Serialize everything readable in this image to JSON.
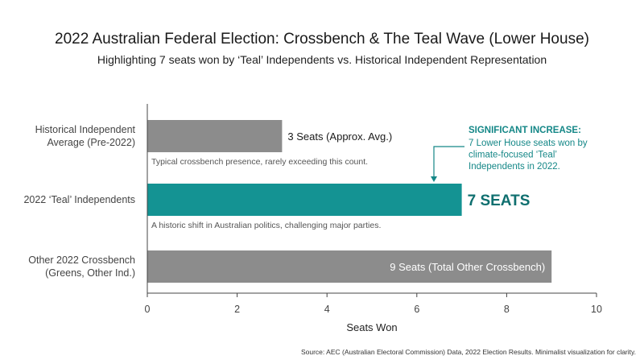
{
  "chart_data": {
    "type": "bar",
    "orientation": "horizontal",
    "title": "2022 Australian Federal Election: Crossbench & The Teal Wave (Lower House)",
    "subtitle": "Highlighting 7 seats won by ‘Teal’ Independents vs. Historical Independent Representation",
    "xlabel": "Seats Won",
    "xlim": [
      0,
      10
    ],
    "xticks": [
      0,
      2,
      4,
      6,
      8,
      10
    ],
    "grid": false,
    "categories": [
      {
        "lines": [
          "Historical Independent",
          "Average (Pre-2022)"
        ]
      },
      {
        "lines": [
          "2022 ‘Teal’ Independents"
        ]
      },
      {
        "lines": [
          "Other 2022 Crossbench",
          "(Greens, Other Ind.)"
        ]
      }
    ],
    "values": [
      3,
      7,
      9
    ],
    "bar_labels": [
      "3 Seats (Approx. Avg.)",
      "7 SEATS",
      "9 Seats (Total Other Crossbench)"
    ],
    "bar_notes": [
      "Typical crossbench presence, rarely exceeding this count.",
      "A historic shift in Australian politics, challenging major parties.",
      ""
    ],
    "colors": [
      "#8c8c8c",
      "#149393",
      "#8c8c8c"
    ],
    "annotation": {
      "heading": "SIGNIFICANT INCREASE:",
      "lines": [
        "7 Lower House seats won by",
        "climate-focused ‘Teal’",
        "Independents in 2022."
      ],
      "color": "#148787"
    },
    "source": "Source: AEC (Australian Electoral Commission) Data, 2022 Election Results. Minimalist visualization for clarity."
  }
}
